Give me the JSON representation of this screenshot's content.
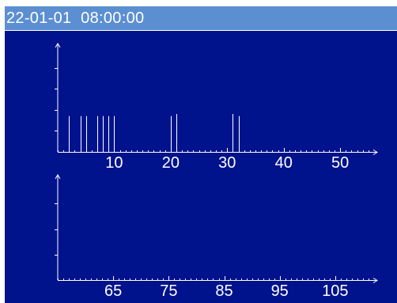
{
  "header": {
    "datetime": "22-01-01  08:00:00"
  },
  "colors": {
    "title_bar": "#5b8fd1",
    "panel_background": "#00128c",
    "foreground": "#ffffff"
  },
  "chart_data": [
    {
      "type": "bar",
      "title": "",
      "xlabel": "",
      "ylabel": "",
      "xlim": [
        0,
        56
      ],
      "ylim": [
        0,
        5
      ],
      "x_tick_labels": [
        "10",
        "20",
        "30",
        "40",
        "50"
      ],
      "x_tick_values": [
        10,
        20,
        30,
        40,
        50
      ],
      "y_ticks": [
        1,
        2,
        3,
        4
      ],
      "x": [
        2,
        4,
        5,
        7,
        8,
        9,
        10,
        20,
        21,
        31,
        32
      ],
      "values": [
        1.7,
        1.7,
        1.7,
        1.7,
        1.7,
        1.7,
        1.7,
        1.7,
        1.8,
        1.8,
        1.7
      ],
      "grid": false,
      "legend": "none"
    },
    {
      "type": "bar",
      "title": "",
      "xlabel": "",
      "ylabel": "",
      "xlim": [
        55,
        112
      ],
      "ylim": [
        0,
        4
      ],
      "x_tick_labels": [
        "65",
        "75",
        "85",
        "95",
        "105"
      ],
      "x_tick_values": [
        65,
        75,
        85,
        95,
        105
      ],
      "y_ticks": [
        1,
        2,
        3
      ],
      "x": [],
      "values": [],
      "grid": false,
      "legend": "none"
    }
  ]
}
